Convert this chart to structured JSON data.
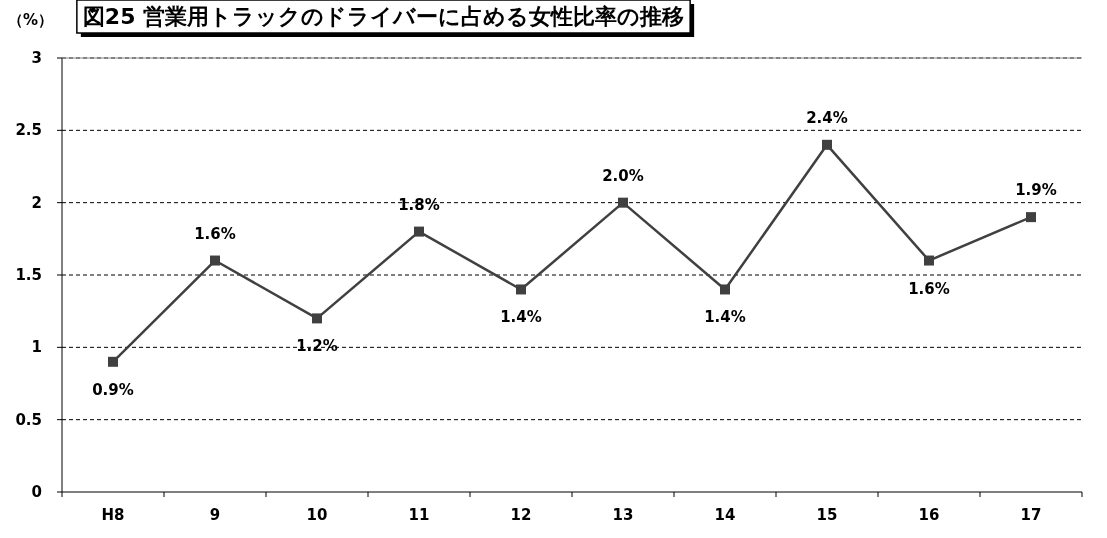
{
  "chart_data": {
    "type": "line",
    "title": "図25 営業用トラックのドライバーに占める女性比率の推移",
    "ylabel": "（%）",
    "categories": [
      "H8",
      "9",
      "10",
      "11",
      "12",
      "13",
      "14",
      "15",
      "16",
      "17"
    ],
    "series": [
      {
        "color": "#404040",
        "values": [
          0.9,
          1.6,
          1.2,
          1.8,
          1.4,
          2.0,
          1.4,
          2.4,
          1.6,
          1.9
        ],
        "value_labels": [
          "0.9%",
          "1.6%",
          "1.2%",
          "1.8%",
          "1.4%",
          "2.0%",
          "1.4%",
          "2.4%",
          "1.6%",
          "1.9%"
        ]
      }
    ],
    "ylim": [
      0,
      3
    ],
    "yticks": [
      0,
      0.5,
      1,
      1.5,
      2,
      2.5,
      3
    ],
    "grid": "y",
    "marker": "square"
  }
}
